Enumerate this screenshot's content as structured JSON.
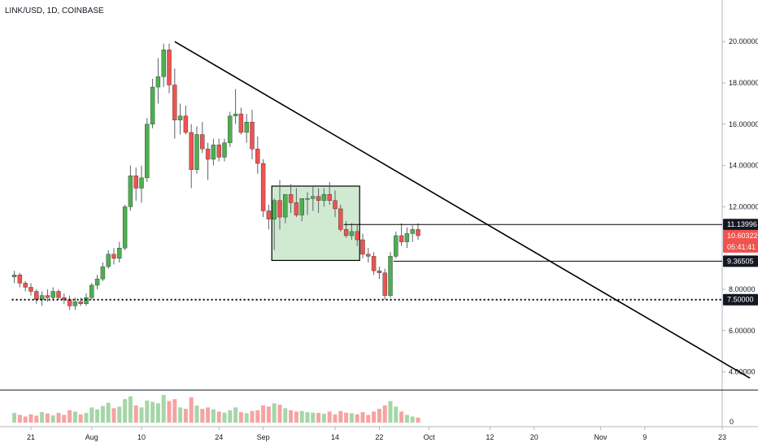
{
  "symbol_header": "LINK/USD, 1D, COINBASE",
  "colors": {
    "up": "#4caf50",
    "down": "#ef5350",
    "volume_up": "#a5d6a7",
    "volume_down": "#f5a3a3",
    "box_fill": "#c8e6c9",
    "line": "#000000",
    "price_tag": "#ef5350"
  },
  "chart_data": {
    "type": "candlestick",
    "y_axis": {
      "ticks": [
        "20.00000",
        "18.00000",
        "16.00000",
        "14.00000",
        "12.00000",
        "8.00000",
        "6.00000",
        "4.00000"
      ],
      "tick_values": [
        20,
        18,
        16,
        14,
        12,
        8,
        6,
        4
      ],
      "range": [
        3,
        21
      ]
    },
    "volume_axis": {
      "tick_label": "0"
    },
    "x_axis": {
      "labels": [
        {
          "text": "21",
          "day": 0
        },
        {
          "text": "Aug",
          "day": 11
        },
        {
          "text": "10",
          "day": 20
        },
        {
          "text": "24",
          "day": 34
        },
        {
          "text": "Sep",
          "day": 42
        },
        {
          "text": "14",
          "day": 55
        },
        {
          "text": "22",
          "day": 63
        },
        {
          "text": "Oct",
          "day": 72
        },
        {
          "text": "12",
          "day": 83
        },
        {
          "text": "20",
          "day": 91
        },
        {
          "text": "Nov",
          "day": 103
        },
        {
          "text": "9",
          "day": 111
        },
        {
          "text": "23",
          "day": 125
        }
      ]
    },
    "candles": [
      [
        -3,
        8.6,
        8.9,
        8.3,
        8.7
      ],
      [
        -2,
        8.7,
        8.8,
        8.1,
        8.3
      ],
      [
        -1,
        8.3,
        8.4,
        7.9,
        8.1
      ],
      [
        0,
        8.1,
        8.3,
        7.7,
        7.9
      ],
      [
        1,
        7.9,
        8.0,
        7.3,
        7.5
      ],
      [
        2,
        7.5,
        7.9,
        7.2,
        7.7
      ],
      [
        3,
        7.7,
        8.0,
        7.4,
        7.6
      ],
      [
        4,
        7.6,
        8.1,
        7.5,
        7.9
      ],
      [
        5,
        7.9,
        8.0,
        7.5,
        7.6
      ],
      [
        6,
        7.6,
        7.8,
        7.3,
        7.5
      ],
      [
        7,
        7.5,
        7.7,
        7.0,
        7.2
      ],
      [
        8,
        7.2,
        7.6,
        7.0,
        7.4
      ],
      [
        9,
        7.4,
        7.6,
        7.2,
        7.3
      ],
      [
        10,
        7.3,
        7.8,
        7.2,
        7.6
      ],
      [
        11,
        7.6,
        8.3,
        7.5,
        8.2
      ],
      [
        12,
        8.2,
        8.7,
        8.0,
        8.5
      ],
      [
        13,
        8.5,
        9.3,
        8.4,
        9.1
      ],
      [
        14,
        9.1,
        9.9,
        9.0,
        9.7
      ],
      [
        15,
        9.7,
        10.0,
        9.2,
        9.5
      ],
      [
        16,
        9.5,
        10.3,
        9.3,
        10.0
      ],
      [
        17,
        10.0,
        12.1,
        9.9,
        12.0
      ],
      [
        18,
        12.0,
        14.0,
        11.8,
        13.5
      ],
      [
        19,
        13.5,
        13.9,
        12.3,
        12.9
      ],
      [
        20,
        12.9,
        14.0,
        12.2,
        13.4
      ],
      [
        21,
        13.4,
        16.3,
        13.2,
        16.0
      ],
      [
        22,
        16.0,
        18.2,
        15.8,
        17.8
      ],
      [
        23,
        17.8,
        19.2,
        17.0,
        18.3
      ],
      [
        24,
        18.3,
        19.9,
        17.8,
        19.6
      ],
      [
        25,
        19.6,
        19.9,
        17.5,
        17.9
      ],
      [
        26,
        17.9,
        18.7,
        15.3,
        16.2
      ],
      [
        27,
        16.2,
        17.0,
        15.5,
        16.4
      ],
      [
        28,
        16.4,
        16.9,
        15.5,
        15.6
      ],
      [
        29,
        15.6,
        16.0,
        12.9,
        13.8
      ],
      [
        30,
        13.8,
        15.9,
        13.6,
        15.5
      ],
      [
        31,
        15.5,
        16.1,
        14.6,
        14.8
      ],
      [
        32,
        14.8,
        15.1,
        13.3,
        14.3
      ],
      [
        33,
        14.3,
        15.3,
        14.0,
        15.0
      ],
      [
        34,
        15.0,
        15.3,
        14.2,
        14.4
      ],
      [
        35,
        14.4,
        15.3,
        14.2,
        15.1
      ],
      [
        36,
        15.1,
        16.6,
        14.9,
        16.4
      ],
      [
        37,
        16.4,
        17.7,
        16.0,
        16.5
      ],
      [
        38,
        16.5,
        16.8,
        15.5,
        15.6
      ],
      [
        39,
        15.6,
        16.5,
        15.1,
        16.1
      ],
      [
        40,
        16.1,
        16.7,
        14.3,
        14.8
      ],
      [
        41,
        14.8,
        15.4,
        13.6,
        14.1
      ],
      [
        42,
        14.1,
        14.3,
        11.5,
        11.8
      ],
      [
        43,
        11.8,
        12.1,
        10.9,
        11.4
      ],
      [
        44,
        11.4,
        12.4,
        9.9,
        12.3
      ],
      [
        45,
        12.3,
        13.3,
        10.9,
        11.5
      ],
      [
        46,
        11.5,
        12.5,
        11.2,
        12.6
      ],
      [
        47,
        12.6,
        13.1,
        11.7,
        12.2
      ],
      [
        48,
        12.2,
        12.9,
        11.5,
        11.6
      ],
      [
        49,
        11.6,
        12.4,
        11.3,
        12.4
      ],
      [
        50,
        12.4,
        12.7,
        11.6,
        12.4
      ],
      [
        51,
        12.4,
        13.0,
        11.8,
        12.5
      ],
      [
        52,
        12.5,
        12.9,
        11.7,
        12.3
      ],
      [
        53,
        12.3,
        12.9,
        12.0,
        12.6
      ],
      [
        54,
        12.6,
        13.2,
        12.1,
        12.3
      ],
      [
        55,
        12.3,
        12.8,
        11.5,
        11.9
      ],
      [
        56,
        11.9,
        12.1,
        10.8,
        10.9
      ],
      [
        57,
        10.9,
        11.3,
        10.5,
        10.6
      ],
      [
        58,
        10.6,
        11.2,
        10.4,
        10.8
      ],
      [
        59,
        10.8,
        11.1,
        10.1,
        10.4
      ],
      [
        60,
        10.4,
        10.7,
        9.5,
        9.7
      ],
      [
        61,
        9.7,
        10.0,
        9.3,
        9.6
      ],
      [
        62,
        9.6,
        9.8,
        8.7,
        8.9
      ],
      [
        63,
        8.9,
        9.1,
        8.5,
        8.8
      ],
      [
        64,
        8.8,
        9.0,
        7.5,
        7.7
      ],
      [
        65,
        7.7,
        9.8,
        7.6,
        9.6
      ],
      [
        66,
        9.6,
        10.8,
        9.5,
        10.6
      ],
      [
        67,
        10.6,
        11.2,
        10.1,
        10.3
      ],
      [
        68,
        10.3,
        11.0,
        10.0,
        10.7
      ],
      [
        69,
        10.7,
        11.1,
        10.3,
        10.9
      ],
      [
        70,
        10.9,
        11.2,
        10.4,
        10.6
      ]
    ],
    "volume": [
      [
        -3,
        0.35
      ],
      [
        -2,
        0.28
      ],
      [
        -1,
        0.22
      ],
      [
        0,
        0.3
      ],
      [
        1,
        0.25
      ],
      [
        2,
        0.38
      ],
      [
        3,
        0.33
      ],
      [
        4,
        0.26
      ],
      [
        5,
        0.35
      ],
      [
        6,
        0.28
      ],
      [
        7,
        0.45
      ],
      [
        8,
        0.4
      ],
      [
        9,
        0.3
      ],
      [
        10,
        0.35
      ],
      [
        11,
        0.55
      ],
      [
        12,
        0.48
      ],
      [
        13,
        0.6
      ],
      [
        14,
        0.72
      ],
      [
        15,
        0.52
      ],
      [
        16,
        0.58
      ],
      [
        17,
        0.85
      ],
      [
        18,
        0.95
      ],
      [
        19,
        0.62
      ],
      [
        20,
        0.55
      ],
      [
        21,
        0.8
      ],
      [
        22,
        0.75
      ],
      [
        23,
        0.7
      ],
      [
        24,
        1.0
      ],
      [
        25,
        0.78
      ],
      [
        26,
        0.85
      ],
      [
        27,
        0.55
      ],
      [
        28,
        0.5
      ],
      [
        29,
        0.92
      ],
      [
        30,
        0.62
      ],
      [
        31,
        0.5
      ],
      [
        32,
        0.55
      ],
      [
        33,
        0.48
      ],
      [
        34,
        0.4
      ],
      [
        35,
        0.36
      ],
      [
        36,
        0.45
      ],
      [
        37,
        0.55
      ],
      [
        38,
        0.38
      ],
      [
        39,
        0.34
      ],
      [
        40,
        0.42
      ],
      [
        41,
        0.45
      ],
      [
        42,
        0.62
      ],
      [
        43,
        0.58
      ],
      [
        44,
        0.7
      ],
      [
        45,
        0.65
      ],
      [
        46,
        0.52
      ],
      [
        47,
        0.45
      ],
      [
        48,
        0.4
      ],
      [
        49,
        0.42
      ],
      [
        50,
        0.38
      ],
      [
        51,
        0.36
      ],
      [
        52,
        0.35
      ],
      [
        53,
        0.32
      ],
      [
        54,
        0.4
      ],
      [
        55,
        0.3
      ],
      [
        56,
        0.42
      ],
      [
        57,
        0.36
      ],
      [
        58,
        0.34
      ],
      [
        59,
        0.3
      ],
      [
        60,
        0.38
      ],
      [
        61,
        0.28
      ],
      [
        62,
        0.4
      ],
      [
        63,
        0.5
      ],
      [
        64,
        0.62
      ],
      [
        65,
        0.78
      ],
      [
        66,
        0.58
      ],
      [
        67,
        0.4
      ],
      [
        68,
        0.28
      ],
      [
        69,
        0.22
      ],
      [
        70,
        0.18
      ]
    ],
    "trendline": {
      "start": [
        26,
        20.0
      ],
      "end": [
        130,
        3.7
      ]
    },
    "horizontal_lines": [
      {
        "label": "11.13996",
        "value": 11.14,
        "from_day": 57,
        "style": "solid"
      },
      {
        "label": "9.36505",
        "value": 9.365,
        "from_day": 66,
        "style": "solid"
      },
      {
        "label": "7.50000",
        "value": 7.5,
        "from_day": -3,
        "style": "dotted"
      }
    ],
    "rectangle": {
      "from_day": 44,
      "to_day": 59,
      "top": 13.0,
      "bottom": 9.4
    },
    "current_price": {
      "price_label": "10.60322",
      "countdown_label": "05:41:41",
      "value": 10.60322
    }
  }
}
